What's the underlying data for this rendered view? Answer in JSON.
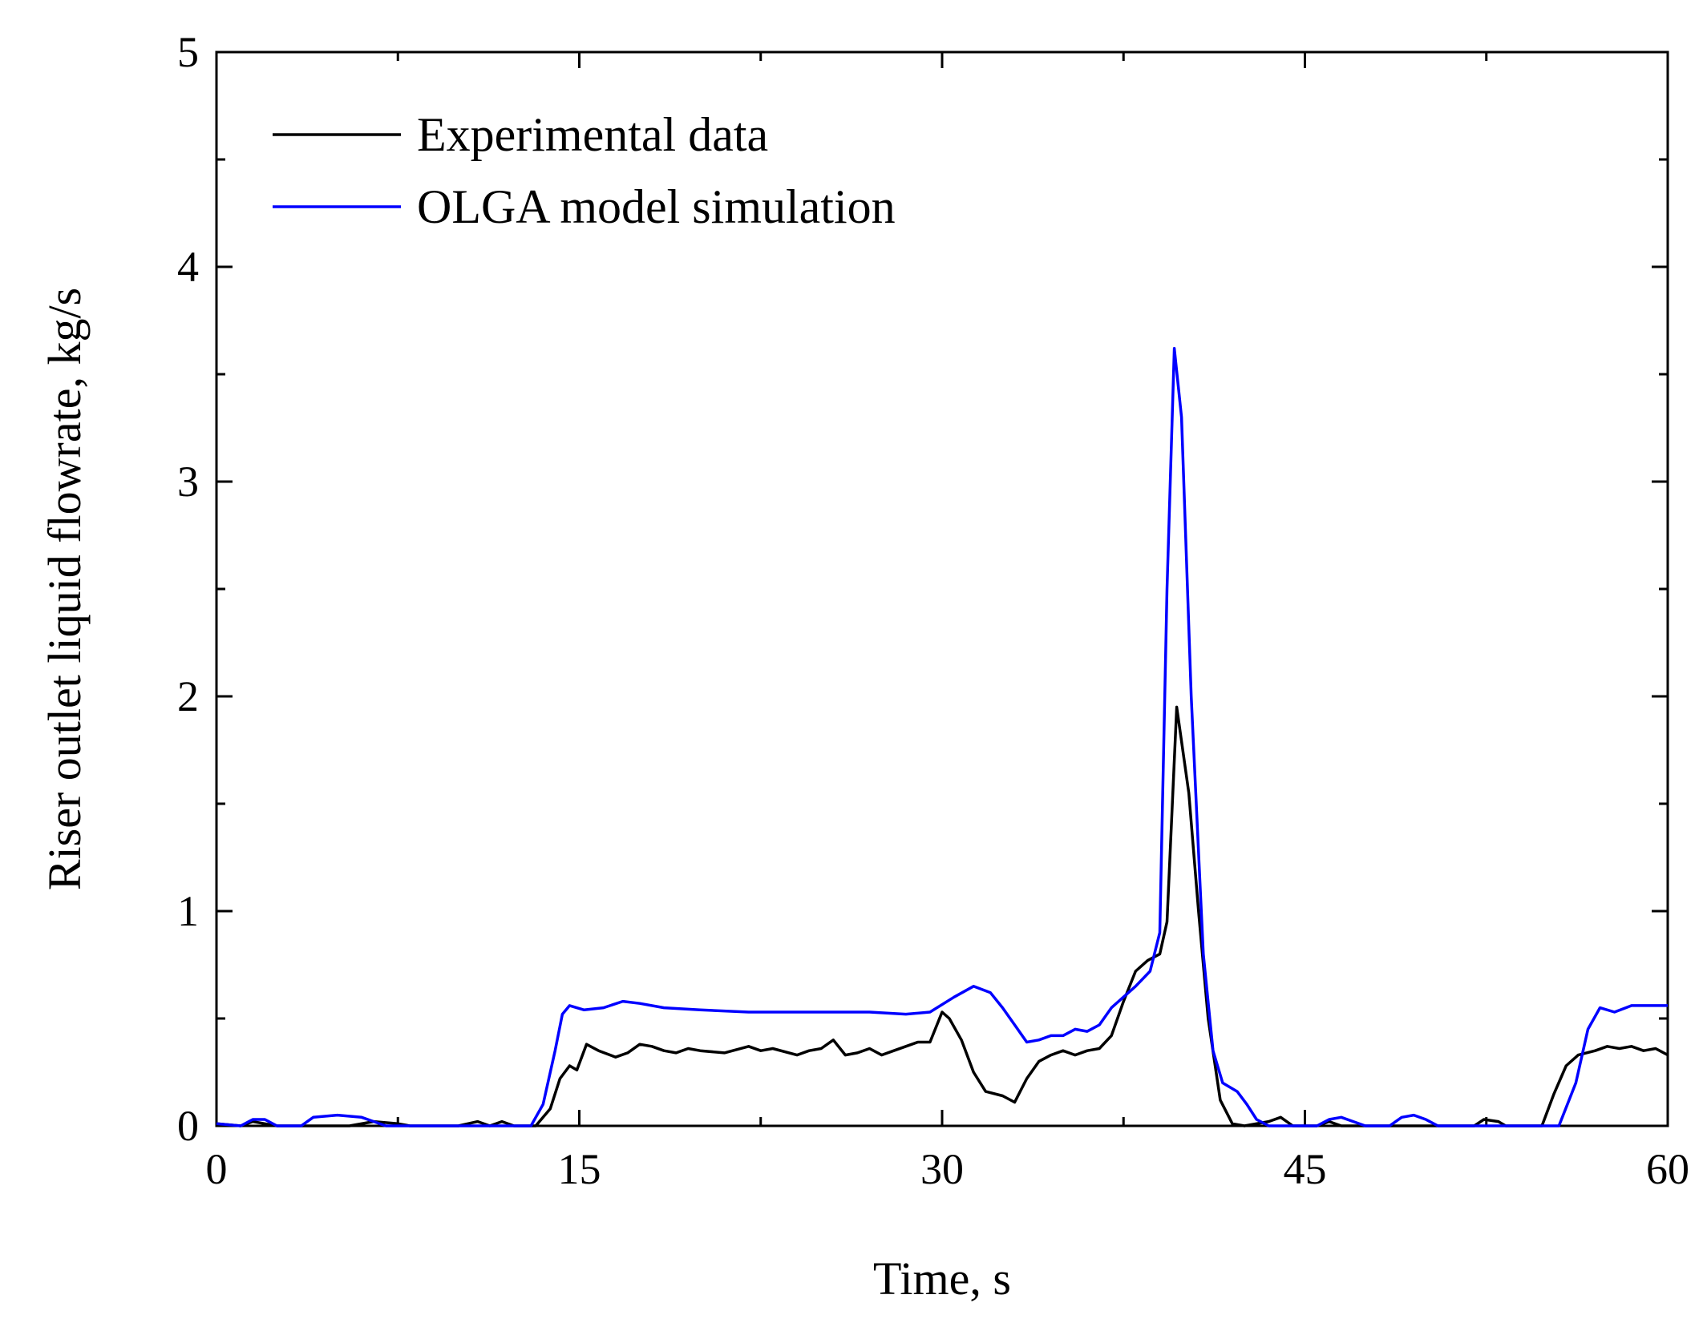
{
  "chart_data": {
    "type": "line",
    "title": "",
    "xlabel": "Time, s",
    "ylabel": "Riser outlet liquid flowrate, kg/s",
    "xlim": [
      0,
      60
    ],
    "ylim": [
      0,
      5
    ],
    "xticks": [
      0,
      15,
      30,
      45,
      60
    ],
    "yticks": [
      0,
      1,
      2,
      3,
      4,
      5
    ],
    "x_minor_step": 7.5,
    "y_minor_step": 0.5,
    "grid": false,
    "legend_position": "top-left",
    "series": [
      {
        "name": "Experimental data",
        "color": "#000000",
        "points": [
          [
            0,
            0.01
          ],
          [
            1,
            0.0
          ],
          [
            1.5,
            0.02
          ],
          [
            2,
            0.01
          ],
          [
            2.5,
            0.0
          ],
          [
            4,
            0.0
          ],
          [
            5.5,
            0.0
          ],
          [
            6.5,
            0.02
          ],
          [
            7.5,
            0.01
          ],
          [
            8,
            0.0
          ],
          [
            10,
            0.0
          ],
          [
            10.8,
            0.02
          ],
          [
            11.3,
            0.0
          ],
          [
            11.8,
            0.02
          ],
          [
            12.3,
            0.0
          ],
          [
            13.2,
            0.0
          ],
          [
            13.8,
            0.08
          ],
          [
            14.2,
            0.22
          ],
          [
            14.6,
            0.28
          ],
          [
            14.9,
            0.26
          ],
          [
            15.3,
            0.38
          ],
          [
            15.8,
            0.35
          ],
          [
            16.5,
            0.32
          ],
          [
            17,
            0.34
          ],
          [
            17.5,
            0.38
          ],
          [
            18,
            0.37
          ],
          [
            18.5,
            0.35
          ],
          [
            19,
            0.34
          ],
          [
            19.5,
            0.36
          ],
          [
            20,
            0.35
          ],
          [
            21,
            0.34
          ],
          [
            22,
            0.37
          ],
          [
            22.5,
            0.35
          ],
          [
            23,
            0.36
          ],
          [
            24,
            0.33
          ],
          [
            24.5,
            0.35
          ],
          [
            25,
            0.36
          ],
          [
            25.5,
            0.4
          ],
          [
            26,
            0.33
          ],
          [
            26.5,
            0.34
          ],
          [
            27,
            0.36
          ],
          [
            27.5,
            0.33
          ],
          [
            28,
            0.35
          ],
          [
            28.5,
            0.37
          ],
          [
            29,
            0.39
          ],
          [
            29.5,
            0.39
          ],
          [
            30,
            0.53
          ],
          [
            30.3,
            0.5
          ],
          [
            30.8,
            0.4
          ],
          [
            31.3,
            0.25
          ],
          [
            31.8,
            0.16
          ],
          [
            32.5,
            0.14
          ],
          [
            33,
            0.11
          ],
          [
            33.5,
            0.22
          ],
          [
            34,
            0.3
          ],
          [
            34.5,
            0.33
          ],
          [
            35,
            0.35
          ],
          [
            35.5,
            0.33
          ],
          [
            36,
            0.35
          ],
          [
            36.5,
            0.36
          ],
          [
            37,
            0.42
          ],
          [
            37.5,
            0.58
          ],
          [
            38,
            0.72
          ],
          [
            38.5,
            0.77
          ],
          [
            39,
            0.8
          ],
          [
            39.3,
            0.95
          ],
          [
            39.7,
            1.95
          ],
          [
            40.2,
            1.55
          ],
          [
            40.6,
            1.0
          ],
          [
            41,
            0.5
          ],
          [
            41.5,
            0.12
          ],
          [
            42,
            0.01
          ],
          [
            42.5,
            0.0
          ],
          [
            43.5,
            0.02
          ],
          [
            44,
            0.04
          ],
          [
            44.5,
            0.0
          ],
          [
            45.5,
            0.0
          ],
          [
            46,
            0.02
          ],
          [
            46.5,
            0.0
          ],
          [
            52,
            0.0
          ],
          [
            52.4,
            0.03
          ],
          [
            53,
            0.02
          ],
          [
            53.3,
            0.0
          ],
          [
            54.8,
            0.0
          ],
          [
            55.3,
            0.15
          ],
          [
            55.8,
            0.28
          ],
          [
            56.3,
            0.33
          ],
          [
            57,
            0.35
          ],
          [
            57.5,
            0.37
          ],
          [
            58,
            0.36
          ],
          [
            58.5,
            0.37
          ],
          [
            59,
            0.35
          ],
          [
            59.5,
            0.36
          ],
          [
            60,
            0.33
          ]
        ]
      },
      {
        "name": "OLGA model simulation",
        "color": "#0000ff",
        "points": [
          [
            0,
            0.01
          ],
          [
            1,
            0.0
          ],
          [
            1.5,
            0.03
          ],
          [
            2,
            0.03
          ],
          [
            2.5,
            0.0
          ],
          [
            3.5,
            0.0
          ],
          [
            4,
            0.04
          ],
          [
            5,
            0.05
          ],
          [
            6,
            0.04
          ],
          [
            6.5,
            0.02
          ],
          [
            7,
            0.0
          ],
          [
            13,
            0.0
          ],
          [
            13.5,
            0.1
          ],
          [
            14,
            0.35
          ],
          [
            14.3,
            0.52
          ],
          [
            14.6,
            0.56
          ],
          [
            15.2,
            0.54
          ],
          [
            16,
            0.55
          ],
          [
            16.8,
            0.58
          ],
          [
            17.5,
            0.57
          ],
          [
            18.5,
            0.55
          ],
          [
            20,
            0.54
          ],
          [
            22,
            0.53
          ],
          [
            25,
            0.53
          ],
          [
            27,
            0.53
          ],
          [
            28.5,
            0.52
          ],
          [
            29.5,
            0.53
          ],
          [
            30.5,
            0.6
          ],
          [
            31.3,
            0.65
          ],
          [
            32,
            0.62
          ],
          [
            32.5,
            0.55
          ],
          [
            33,
            0.47
          ],
          [
            33.5,
            0.39
          ],
          [
            34,
            0.4
          ],
          [
            34.5,
            0.42
          ],
          [
            35,
            0.42
          ],
          [
            35.5,
            0.45
          ],
          [
            36,
            0.44
          ],
          [
            36.5,
            0.47
          ],
          [
            37,
            0.55
          ],
          [
            38,
            0.65
          ],
          [
            38.6,
            0.72
          ],
          [
            39,
            0.9
          ],
          [
            39.3,
            2.5
          ],
          [
            39.6,
            3.62
          ],
          [
            39.9,
            3.3
          ],
          [
            40.3,
            2.0
          ],
          [
            40.8,
            0.8
          ],
          [
            41.2,
            0.35
          ],
          [
            41.6,
            0.2
          ],
          [
            42.2,
            0.16
          ],
          [
            42.6,
            0.1
          ],
          [
            43,
            0.03
          ],
          [
            43.5,
            0.0
          ],
          [
            45.5,
            0.0
          ],
          [
            46,
            0.03
          ],
          [
            46.5,
            0.04
          ],
          [
            47,
            0.02
          ],
          [
            47.5,
            0.0
          ],
          [
            48.5,
            0.0
          ],
          [
            49,
            0.04
          ],
          [
            49.5,
            0.05
          ],
          [
            50,
            0.03
          ],
          [
            50.5,
            0.0
          ],
          [
            55.5,
            0.0
          ],
          [
            56.2,
            0.2
          ],
          [
            56.7,
            0.45
          ],
          [
            57.2,
            0.55
          ],
          [
            57.8,
            0.53
          ],
          [
            58.5,
            0.56
          ],
          [
            59.2,
            0.56
          ],
          [
            60,
            0.56
          ]
        ]
      }
    ]
  }
}
